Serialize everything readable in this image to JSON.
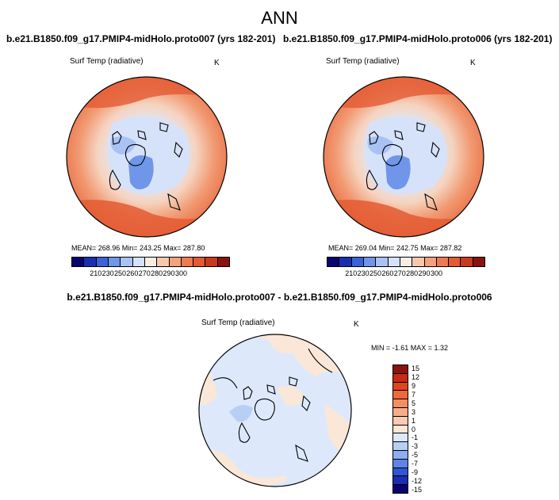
{
  "title": "ANN",
  "top_left": {
    "subtitle": "b.e21.B1850.f09_g17.PMIP4-midHolo.proto007 (yrs 182-201)",
    "variable": "Surf Temp (radiative)",
    "units": "K",
    "stats": "MEAN= 268.96  Min= 243.25  Max= 287.80"
  },
  "top_right": {
    "subtitle": "b.e21.B1850.f09_g17.PMIP4-midHolo.proto006 (yrs 182-201)",
    "variable": "Surf Temp (radiative)",
    "units": "K",
    "stats": "MEAN= 269.04  Min= 242.75  Max= 287.82"
  },
  "diff": {
    "subtitle": "b.e21.B1850.f09_g17.PMIP4-midHolo.proto007 - b.e21.B1850.f09_g17.PMIP4-midHolo.proto006",
    "variable": "Surf Temp (radiative)",
    "units": "K",
    "stats": "MIN =  -1.61 MAX =   1.32"
  },
  "abs_colorbar": {
    "labels": [
      "210",
      "230",
      "250",
      "260",
      "270",
      "280",
      "290",
      "300"
    ],
    "colors": [
      "#08066e",
      "#1a2fb0",
      "#3b62d8",
      "#6f96e8",
      "#a9c2f3",
      "#d6e2fa",
      "#f6ede4",
      "#f7c8ae",
      "#f4a27e",
      "#ef7a52",
      "#e45a33",
      "#c83a1e",
      "#8a1310"
    ]
  },
  "diff_colorbar": {
    "labels": [
      "15",
      "12",
      "9",
      "7",
      "5",
      "3",
      "1",
      "0",
      "-1",
      "-3",
      "-5",
      "-7",
      "-9",
      "-12",
      "-15"
    ],
    "colors": [
      "#8a1310",
      "#c62b13",
      "#e0461e",
      "#ef6a3a",
      "#f48d60",
      "#f7ad89",
      "#f9cbb2",
      "#fbe7d7",
      "#dde9fb",
      "#b8cff5",
      "#8eaef0",
      "#5f84e6",
      "#3155d4",
      "#1a2fb0",
      "#08066e"
    ]
  }
}
